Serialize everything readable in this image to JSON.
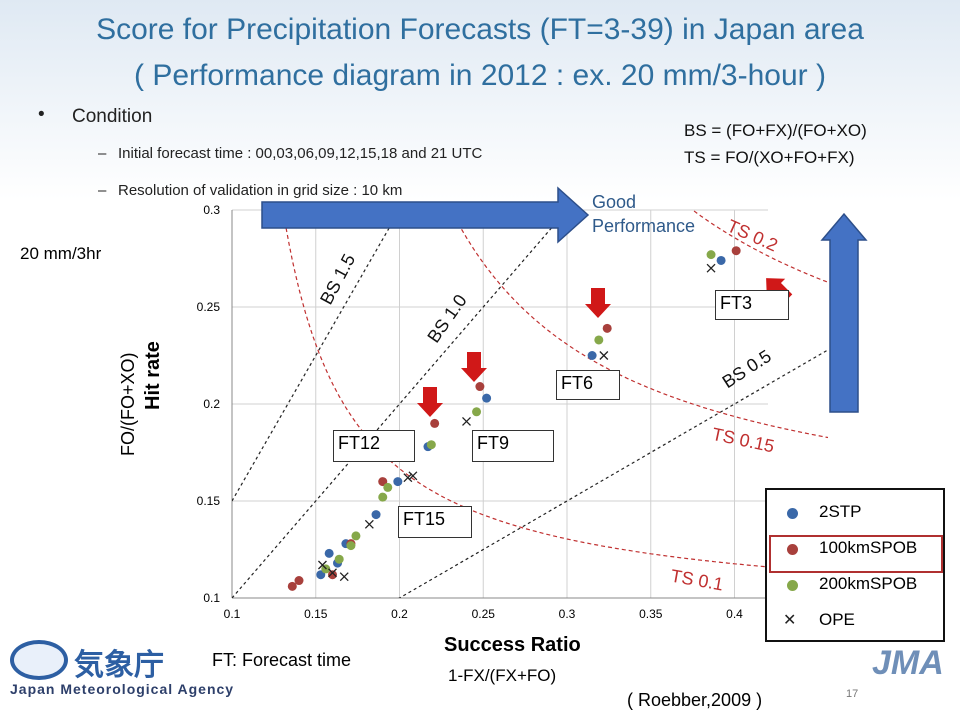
{
  "slide": {
    "title_line1": "Score for Precipitation Forecasts (FT=3-39) in Japan area",
    "title_line2": "( Performance diagram in 2012 : ex. 20 mm/3-hour )",
    "condition_label": "Condition",
    "condition_items": [
      "Initial forecast time : 00,03,06,09,12,15,18 and 21 UTC",
      "Resolution of validation in grid size : 10 km"
    ],
    "bs_formula": "BS = (FO+FX)/(FO+XO)",
    "ts_formula": "TS = FO/(XO+FO+FX)",
    "threshold_label": "20 mm/3hr",
    "good_performance": "Good\nPerformance",
    "ft_note": "FT: Forecast time",
    "reference": "( Roebber,2009 )",
    "page_number": "17",
    "agency_name": "Japan Meteorological Agency",
    "agency_jp": "気象庁",
    "jma_logo": "JMA"
  },
  "chart_data": {
    "type": "scatter",
    "xlabel": "Success Ratio",
    "xlabel_sub": "1-FX/(FX+FO)",
    "ylabel": "Hit rate",
    "ylabel_sub": "FO/(FO+XO)",
    "xlim": [
      0.1,
      0.42
    ],
    "ylim": [
      0.1,
      0.3
    ],
    "x_ticks": [
      "0.1",
      "0.15",
      "0.2",
      "0.25",
      "0.3",
      "0.35",
      "0.4"
    ],
    "y_ticks": [
      "0.1",
      "0.15",
      "0.2",
      "0.25",
      "0.3"
    ],
    "bias_lines": [
      {
        "label": "BS 1.5",
        "value": 1.5
      },
      {
        "label": "BS 1.0",
        "value": 1.0
      },
      {
        "label": "BS 0.5",
        "value": 0.5
      }
    ],
    "ts_curves": [
      {
        "label": "TS 0.2",
        "value": 0.2
      },
      {
        "label": "TS 0.15",
        "value": 0.15
      },
      {
        "label": "TS 0.1",
        "value": 0.1
      }
    ],
    "series": [
      {
        "name": "2STP",
        "color": "#3a68a8",
        "marker": "circle",
        "points": [
          [
            0.153,
            0.112
          ],
          [
            0.158,
            0.123
          ],
          [
            0.163,
            0.118
          ],
          [
            0.168,
            0.128
          ],
          [
            0.186,
            0.143
          ],
          [
            0.199,
            0.16
          ],
          [
            0.217,
            0.178
          ],
          [
            0.252,
            0.203
          ],
          [
            0.315,
            0.225
          ],
          [
            0.392,
            0.274
          ]
        ]
      },
      {
        "name": "100kmSPOB",
        "color": "#a8403c",
        "marker": "circle",
        "points": [
          [
            0.136,
            0.106
          ],
          [
            0.14,
            0.109
          ],
          [
            0.16,
            0.112
          ],
          [
            0.171,
            0.128
          ],
          [
            0.19,
            0.16
          ],
          [
            0.221,
            0.19
          ],
          [
            0.248,
            0.209
          ],
          [
            0.324,
            0.239
          ],
          [
            0.401,
            0.279
          ]
        ]
      },
      {
        "name": "200kmSPOB",
        "color": "#86a84a",
        "marker": "circle",
        "points": [
          [
            0.156,
            0.115
          ],
          [
            0.164,
            0.12
          ],
          [
            0.171,
            0.127
          ],
          [
            0.174,
            0.132
          ],
          [
            0.19,
            0.152
          ],
          [
            0.193,
            0.157
          ],
          [
            0.219,
            0.179
          ],
          [
            0.246,
            0.196
          ],
          [
            0.319,
            0.233
          ],
          [
            0.386,
            0.277
          ]
        ]
      },
      {
        "name": "OPE",
        "color": "#222222",
        "marker": "x",
        "points": [
          [
            0.154,
            0.117
          ],
          [
            0.16,
            0.113
          ],
          [
            0.167,
            0.111
          ],
          [
            0.182,
            0.138
          ],
          [
            0.205,
            0.162
          ],
          [
            0.208,
            0.163
          ],
          [
            0.24,
            0.191
          ],
          [
            0.322,
            0.225
          ],
          [
            0.386,
            0.27
          ]
        ]
      }
    ],
    "annotations": [
      "FT3",
      "FT6",
      "FT9",
      "FT12",
      "FT15"
    ]
  }
}
